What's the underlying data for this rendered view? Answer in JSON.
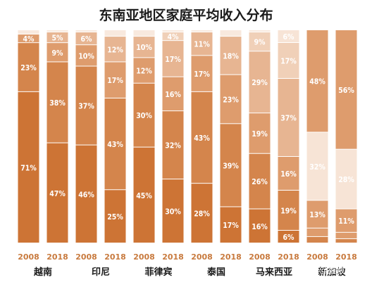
{
  "chart_data": {
    "type": "bar",
    "stacked": true,
    "title": "东南亚地区家庭平均收入分布",
    "categories": [
      "2008",
      "2018",
      "2008",
      "2018",
      "2008",
      "2018",
      "2008",
      "2018",
      "2008",
      "2018",
      "2008",
      "2018"
    ],
    "groups": [
      "越南",
      "印尼",
      "菲律宾",
      "泰国",
      "马来西亚",
      "新加坡"
    ],
    "bars": [
      {
        "year": "2008",
        "group": "越南",
        "segments": [
          {
            "value": 71,
            "label": "71%"
          },
          {
            "value": 23,
            "label": "23%"
          },
          {
            "value": 4,
            "label": "4%"
          },
          {
            "value": 2,
            "label": ""
          }
        ]
      },
      {
        "year": "2018",
        "group": "越南",
        "segments": [
          {
            "value": 47,
            "label": "47%"
          },
          {
            "value": 38,
            "label": "38%"
          },
          {
            "value": 9,
            "label": "9%"
          },
          {
            "value": 5,
            "label": "5%"
          },
          {
            "value": 1,
            "label": ""
          }
        ]
      },
      {
        "year": "2008",
        "group": "印尼",
        "segments": [
          {
            "value": 46,
            "label": "46%"
          },
          {
            "value": 37,
            "label": "37%"
          },
          {
            "value": 10,
            "label": "10%"
          },
          {
            "value": 6,
            "label": "6%"
          },
          {
            "value": 1,
            "label": ""
          }
        ]
      },
      {
        "year": "2018",
        "group": "印尼",
        "segments": [
          {
            "value": 25,
            "label": "25%"
          },
          {
            "value": 43,
            "label": "43%"
          },
          {
            "value": 17,
            "label": "17%"
          },
          {
            "value": 12,
            "label": "12%"
          },
          {
            "value": 3,
            "label": ""
          }
        ]
      },
      {
        "year": "2008",
        "group": "菲律宾",
        "segments": [
          {
            "value": 45,
            "label": "45%"
          },
          {
            "value": 30,
            "label": "30%"
          },
          {
            "value": 12,
            "label": "12%"
          },
          {
            "value": 10,
            "label": "10%"
          },
          {
            "value": 3,
            "label": ""
          }
        ]
      },
      {
        "year": "2018",
        "group": "菲律宾",
        "segments": [
          {
            "value": 30,
            "label": "30%"
          },
          {
            "value": 32,
            "label": "32%"
          },
          {
            "value": 16,
            "label": "16%"
          },
          {
            "value": 17,
            "label": "17%"
          },
          {
            "value": 4,
            "label": "4%"
          },
          {
            "value": 1,
            "label": ""
          }
        ]
      },
      {
        "year": "2008",
        "group": "泰国",
        "segments": [
          {
            "value": 28,
            "label": "28%"
          },
          {
            "value": 43,
            "label": "43%"
          },
          {
            "value": 17,
            "label": "17%"
          },
          {
            "value": 11,
            "label": "11%"
          },
          {
            "value": 1,
            "label": ""
          }
        ]
      },
      {
        "year": "2018",
        "group": "泰国",
        "segments": [
          {
            "value": 17,
            "label": "17%"
          },
          {
            "value": 39,
            "label": "39%"
          },
          {
            "value": 23,
            "label": "23%"
          },
          {
            "value": 18,
            "label": "18%"
          },
          {
            "value": 3,
            "label": ""
          }
        ]
      },
      {
        "year": "2008",
        "group": "马来西亚",
        "segments": [
          {
            "value": 16,
            "label": "16%"
          },
          {
            "value": 26,
            "label": "26%"
          },
          {
            "value": 19,
            "label": "19%"
          },
          {
            "value": 29,
            "label": "29%"
          },
          {
            "value": 9,
            "label": "9%"
          },
          {
            "value": 1,
            "label": ""
          }
        ]
      },
      {
        "year": "2018",
        "group": "马来西亚",
        "segments": [
          {
            "value": 6,
            "label": "6%"
          },
          {
            "value": 19,
            "label": "19%"
          },
          {
            "value": 16,
            "label": "16%"
          },
          {
            "value": 37,
            "label": "37%"
          },
          {
            "value": 17,
            "label": "17%"
          },
          {
            "value": 6,
            "label": "6%"
          }
        ]
      },
      {
        "year": "2008",
        "group": "新加坡",
        "segments": [
          {
            "value": 3,
            "label": ""
          },
          {
            "value": 4,
            "label": ""
          },
          {
            "value": 13,
            "label": "13%"
          },
          {
            "value": 32,
            "label": "32%"
          },
          {
            "value": 48,
            "label": "48%"
          }
        ]
      },
      {
        "year": "2018",
        "group": "新加坡",
        "segments": [
          {
            "value": 2,
            "label": ""
          },
          {
            "value": 3,
            "label": ""
          },
          {
            "value": 11,
            "label": "11%"
          },
          {
            "value": 28,
            "label": "28%"
          },
          {
            "value": 56,
            "label": "56%"
          }
        ]
      }
    ],
    "ylim": [
      0,
      100
    ],
    "grid": false,
    "colors": {
      "level_1": "#cd7435",
      "level_2": "#d4854c",
      "level_3": "#de9c6d",
      "level_4": "#e7b592",
      "level_5": "#f0d0b8",
      "level_6": "#f7e4d6",
      "top_segment_light": "#f8e9de",
      "year_text": "#c87a3e"
    }
  },
  "watermark": "头条 @猿猿的杂皮"
}
